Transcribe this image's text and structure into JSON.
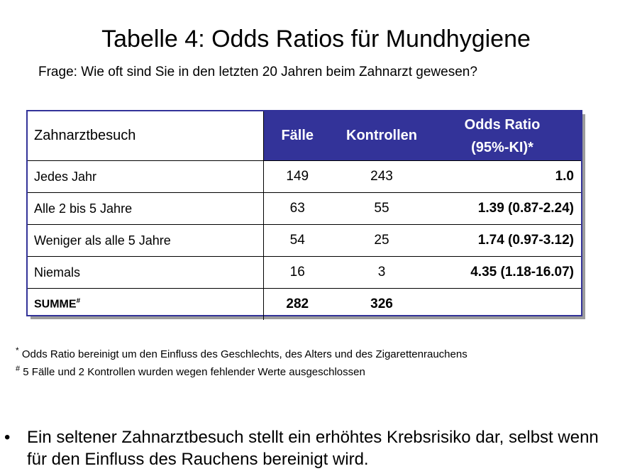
{
  "title": "Tabelle 4: Odds Ratios für Mundhygiene",
  "subtitle": "Frage: Wie oft sind Sie in den letzten 20 Jahren beim Zahnarzt gewesen?",
  "table": {
    "header": {
      "col1": "Zahnarztbesuch",
      "col2": "Fälle",
      "col3": "Kontrollen",
      "col4_line1": "Odds Ratio",
      "col4_line2": "(95%-KI)*"
    },
    "rows": [
      {
        "label": "Jedes Jahr",
        "faelle": "149",
        "kontrollen": "243",
        "or": "1.0"
      },
      {
        "label": "Alle 2 bis 5 Jahre",
        "faelle": "63",
        "kontrollen": "55",
        "or": "1.39 (0.87-2.24)"
      },
      {
        "label": "Weniger als alle 5 Jahre",
        "faelle": "54",
        "kontrollen": "25",
        "or": "1.74 (0.97-3.12)"
      },
      {
        "label": "Niemals",
        "faelle": "16",
        "kontrollen": "3",
        "or": "4.35 (1.18-16.07)"
      }
    ],
    "total": {
      "label": "SUMME",
      "marker": "#",
      "faelle": "282",
      "kontrollen": "326",
      "or": ""
    }
  },
  "notes": {
    "note1_marker": "*",
    "note1": "Odds Ratio bereinigt um den Einfluss des Geschlechts, des Alters und des Zigarettenrauchens",
    "note2_marker": "#",
    "note2": "5 Fälle und 2 Kontrollen wurden wegen fehlender Werte ausgeschlossen"
  },
  "bullet": {
    "symbol": "•",
    "text": "Ein seltener Zahnarztbesuch stellt ein erhöhtes Krebsrisiko dar, selbst wenn für den Einfluss des Rauchens bereinigt wird."
  },
  "colors": {
    "header_bg": "#333399",
    "header_text": "#ffffff"
  }
}
